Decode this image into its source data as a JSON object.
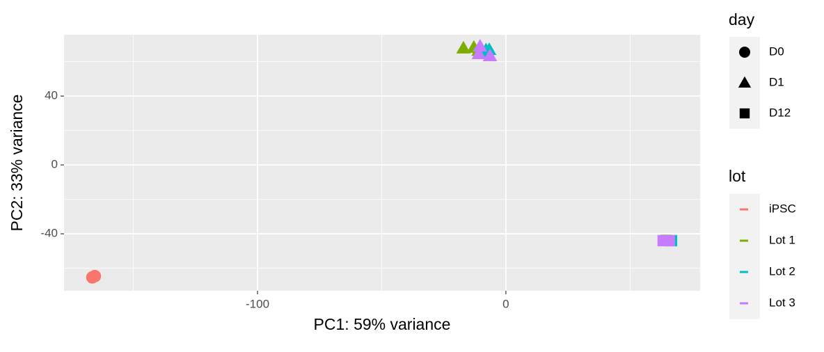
{
  "chart_data": {
    "type": "scatter",
    "xlabel": "PC1: 59% variance",
    "ylabel": "PC2: 33% variance",
    "xlim": [
      -177.9,
      78.2
    ],
    "ylim": [
      -73.1,
      75.6
    ],
    "xticks": [
      -100,
      0
    ],
    "yticks": [
      40,
      0,
      -40
    ],
    "x_minor_ticks": [
      -150,
      -50,
      50
    ],
    "y_minor_ticks": [
      60,
      20,
      -20,
      -60
    ],
    "grid": true,
    "shape_legend": {
      "title": "day",
      "entries": [
        {
          "label": "D0",
          "shape": "circle"
        },
        {
          "label": "D1",
          "shape": "triangle"
        },
        {
          "label": "D12",
          "shape": "square"
        }
      ]
    },
    "color_legend_title": "lot",
    "series": [
      {
        "name": "iPSC",
        "color": "#F8766D",
        "x": [
          -166.5,
          -165.5
        ],
        "y": [
          -65.3,
          -64.6
        ],
        "day": [
          "D0",
          "D0"
        ]
      },
      {
        "name": "Lot 1",
        "color": "#7CAE00",
        "x": [
          -17.1,
          -12.9,
          -11.0,
          64.5
        ],
        "y": [
          67.9,
          68.3,
          66.5,
          -43.8
        ],
        "day": [
          "D1",
          "D1",
          "D1",
          "D12"
        ]
      },
      {
        "name": "Lot 2",
        "color": "#00BFC4",
        "x": [
          -8.0,
          -6.7,
          -7.5,
          66.7
        ],
        "y": [
          66.8,
          67.0,
          65.5,
          -44.0
        ],
        "day": [
          "D1",
          "D1",
          "D1",
          "D12"
        ]
      },
      {
        "name": "Lot 3",
        "color": "#C77CFF",
        "x": [
          -10.4,
          -10.9,
          -6.4,
          63.3,
          65.8
        ],
        "y": [
          69.0,
          64.6,
          63.4,
          -44.0,
          -44.0
        ],
        "day": [
          "D1",
          "D1",
          "D1",
          "D12",
          "D12"
        ]
      }
    ]
  }
}
